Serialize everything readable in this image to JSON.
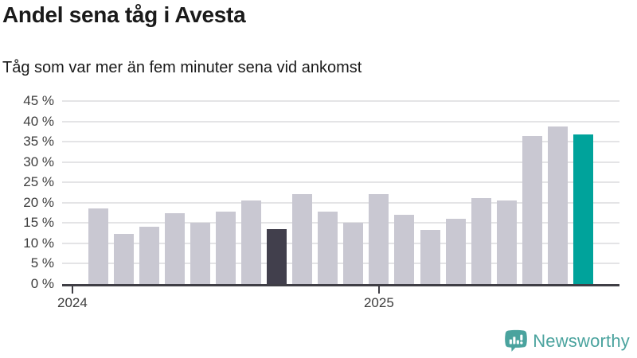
{
  "chart_data": {
    "type": "bar",
    "title": "Andel sena tåg i Avesta",
    "subtitle": "Tåg som var mer än fem minuter sena vid ankomst",
    "unit": "%",
    "ylim": [
      0,
      45
    ],
    "grid": true,
    "legend": "none",
    "y_ticks": [
      {
        "value": 45,
        "label": "45 %"
      },
      {
        "value": 40,
        "label": "40 %"
      },
      {
        "value": 35,
        "label": "35 %"
      },
      {
        "value": 30,
        "label": "30 %"
      },
      {
        "value": 25,
        "label": "25 %"
      },
      {
        "value": 20,
        "label": "20 %"
      },
      {
        "value": 15,
        "label": "15 %"
      },
      {
        "value": 10,
        "label": "10 %"
      },
      {
        "value": 5,
        "label": "5 %"
      },
      {
        "value": 0,
        "label": "0 %"
      }
    ],
    "x_ticks": [
      {
        "label": "2024",
        "bar_index": -1
      },
      {
        "label": "2025",
        "bar_index": 11
      }
    ],
    "values": [
      18.5,
      12.3,
      14.0,
      17.5,
      15.0,
      17.9,
      20.6,
      13.6,
      22.2,
      17.8,
      15.1,
      22.2,
      17.0,
      13.4,
      16.0,
      21.2,
      20.6,
      36.3,
      38.8,
      36.7
    ],
    "highlight": {
      "dark_bar_index": 7,
      "accent_bar_index": 19
    },
    "colors": {
      "bar_default": "#c9c8d2",
      "bar_dark": "#413f4c",
      "bar_accent": "#00a39b",
      "axis_line": "#3f3e45",
      "gridline": "#e4e4e6",
      "title_text": "#1a1a1a",
      "axis_text": "#3d3d3d"
    }
  },
  "footer": {
    "brand": "Newsworthy",
    "brand_color": "#4aa39e",
    "icon": "newsworthy-speech-bubble-bar-chart-icon"
  }
}
